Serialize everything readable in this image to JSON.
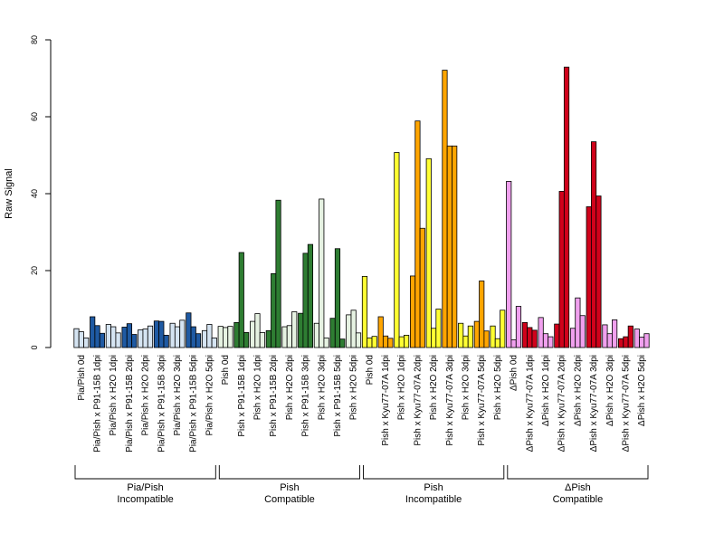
{
  "chart_data": {
    "type": "bar",
    "ylabel": "Raw Signal",
    "ylim": [
      0,
      80
    ],
    "yticks": [
      0,
      20,
      40,
      60,
      80
    ],
    "grid": false,
    "categories": [
      "Pia/Pish 0d",
      "Pia/Pish x P91-15B 1dpi",
      "Pia/Pish x H2O 1dpi",
      "Pia/Pish x P91-15B 2dpi",
      "Pia/Pish x H2O 2dpi",
      "Pia/Pish x P91-15B 3dpi",
      "Pia/Pish x H2O 3dpi",
      "Pia/Pish x P91-15B 5dpi",
      "Pia/Pish x H2O 5dpi",
      "Pish 0d",
      "Pish x P91-15B 1dpi",
      "Pish x H2O 1dpi",
      "Pish x P91-15B 2dpi",
      "Pish x H2O 2dpi",
      "Pish x P91-15B 3dpi",
      "Pish x H2O 3dpi",
      "Pish x P91-15B 5dpi",
      "Pish x H2O 5dpi",
      "Pish 0d",
      "Pish x Kyu77-07A 1dpi",
      "Pish x H2O 1dpi",
      "Pish x Kyu77-07A 2dpi",
      "Pish x H2O 2dpi",
      "Pish x Kyu77-07A 3dpi",
      "Pish x H2O 3dpi",
      "Pish x Kyu77-07A 5dpi",
      "Pish x H2O 5dpi",
      "ΔPish 0d",
      "ΔPish x Kyu77-07A 1dpi",
      "ΔPish x H2O 1dpi",
      "ΔPish x Kyu77-07A 2dpi",
      "ΔPish x H2O 2dpi",
      "ΔPish x Kyu77-07A 3dpi",
      "ΔPish x H2O 3dpi",
      "ΔPish x Kyu77-07A 5dpi",
      "ΔPish x H2O 5dpi"
    ],
    "colors": {
      "light_blue": "#d5e4f2",
      "dark_blue": "#1f5aa3",
      "light_green": "#e6f2e2",
      "dark_green": "#2e7d32",
      "yellow": "#ffff33",
      "orange": "#ffa500",
      "pink": "#f0a0ee",
      "red": "#d0021b"
    },
    "bar_colors": [
      "light_blue",
      "dark_blue",
      "light_blue",
      "dark_blue",
      "light_blue",
      "dark_blue",
      "light_blue",
      "dark_blue",
      "light_blue",
      "light_green",
      "dark_green",
      "light_green",
      "dark_green",
      "light_green",
      "dark_green",
      "light_green",
      "dark_green",
      "light_green",
      "yellow",
      "orange",
      "yellow",
      "orange",
      "yellow",
      "orange",
      "yellow",
      "orange",
      "yellow",
      "pink",
      "red",
      "pink",
      "red",
      "pink",
      "red",
      "pink",
      "red",
      "pink"
    ],
    "values": [
      [
        4.9,
        4.1,
        2.5
      ],
      [
        8.0,
        5.7,
        3.7
      ],
      [
        6.0,
        5.4,
        3.8
      ],
      [
        5.3,
        6.2,
        3.4
      ],
      [
        4.6,
        4.8,
        5.6
      ],
      [
        6.9,
        6.8,
        3.2
      ],
      [
        6.3,
        5.4,
        7.1
      ],
      [
        9.0,
        5.4,
        3.6
      ],
      [
        4.4,
        6.0,
        2.5
      ],
      [
        5.5,
        5.2,
        5.5
      ],
      [
        6.5,
        24.7,
        3.9
      ],
      [
        6.8,
        8.8,
        3.9
      ],
      [
        4.4,
        19.2,
        38.3
      ],
      [
        5.4,
        5.7,
        9.3
      ],
      [
        8.9,
        24.5,
        26.8
      ],
      [
        6.3,
        38.6,
        2.5
      ],
      [
        7.6,
        25.7,
        2.2
      ],
      [
        8.5,
        9.7,
        3.8
      ],
      [
        18.5,
        2.5,
        2.9
      ],
      [
        8.0,
        3.0,
        2.4
      ],
      [
        50.7,
        2.8,
        3.2
      ],
      [
        18.6,
        58.9,
        31.0
      ],
      [
        49.1,
        5.0,
        10.0
      ],
      [
        72.1,
        52.4,
        52.4
      ],
      [
        6.3,
        3.0,
        5.6
      ],
      [
        6.8,
        17.3,
        4.3
      ],
      [
        5.6,
        2.3,
        9.7
      ],
      [
        43.2,
        2.0,
        10.7
      ],
      [
        6.5,
        5.2,
        4.5
      ],
      [
        7.8,
        3.6,
        2.8
      ],
      [
        6.1,
        40.6,
        72.9
      ],
      [
        5.0,
        12.9,
        8.3
      ],
      [
        36.6,
        53.5,
        39.4
      ],
      [
        5.9,
        3.6,
        7.2
      ],
      [
        2.3,
        2.8,
        5.6
      ],
      [
        4.8,
        2.7,
        3.6
      ]
    ],
    "groups": [
      {
        "label": "Pia/Pish\nIncompatible",
        "start": 0,
        "end": 8
      },
      {
        "label": "Pish\nCompatible",
        "start": 9,
        "end": 17
      },
      {
        "label": "Pish\nIncompatible",
        "start": 18,
        "end": 26
      },
      {
        "label": "ΔPish\nCompatible",
        "start": 27,
        "end": 35
      }
    ]
  }
}
